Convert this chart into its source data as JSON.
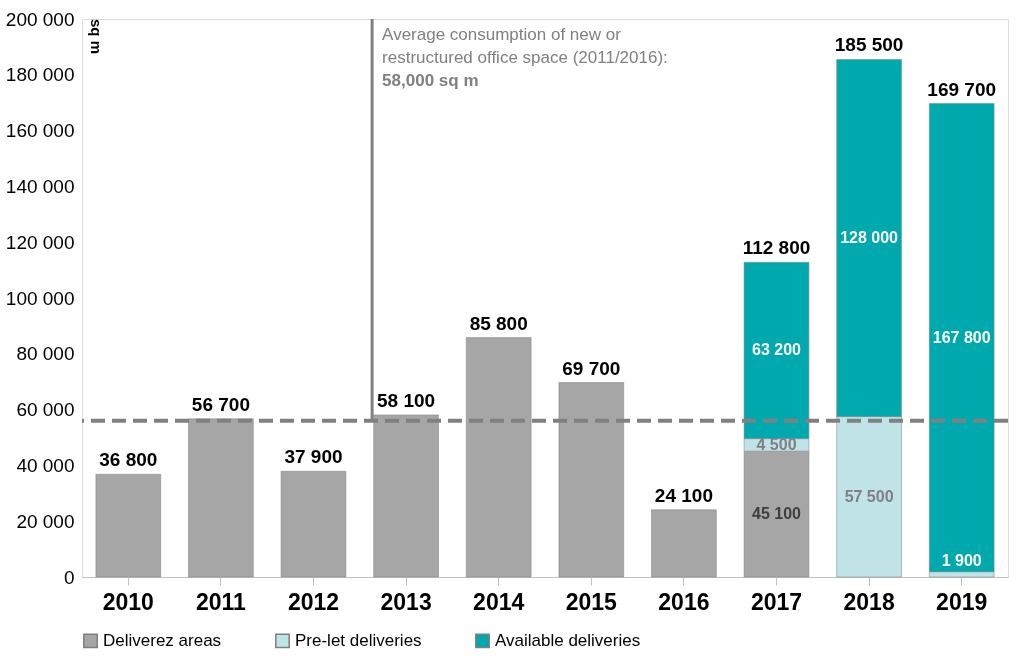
{
  "chart_data": {
    "type": "bar",
    "stacked": true,
    "ylabel": "sq m",
    "categories": [
      "2010",
      "2011",
      "2012",
      "2013",
      "2014",
      "2015",
      "2016",
      "2017",
      "2018",
      "2019"
    ],
    "series": [
      {
        "name": "Deliverez areas",
        "color": "#a6a6a6",
        "values": [
          36800,
          56700,
          37900,
          58100,
          85800,
          69700,
          24100,
          45100,
          null,
          null
        ],
        "value_labels": [
          null,
          null,
          null,
          null,
          null,
          null,
          null,
          "45 100",
          null,
          null
        ]
      },
      {
        "name": "Pre-let deliveries",
        "color": "#bfe3e6",
        "values": [
          null,
          null,
          null,
          null,
          null,
          null,
          null,
          4500,
          57500,
          1900
        ],
        "value_labels": [
          null,
          null,
          null,
          null,
          null,
          null,
          null,
          "4 500",
          "57 500",
          "1 900"
        ]
      },
      {
        "name": "Available deliveries",
        "color": "#00a9ad",
        "values": [
          null,
          null,
          null,
          null,
          null,
          null,
          null,
          63200,
          128000,
          167800
        ],
        "value_labels": [
          null,
          null,
          null,
          null,
          null,
          null,
          null,
          "63 200",
          "128 000",
          "167 800"
        ]
      }
    ],
    "totals": [
      "36 800",
      "56 700",
      "37 900",
      "58 100",
      "85 800",
      "69 700",
      "24 100",
      "112 800",
      "185 500",
      "169 700"
    ],
    "ylim": [
      0,
      200000
    ],
    "yticks": [
      0,
      {
        "value": 20000,
        "label": "20 000"
      },
      {
        "value": 40000,
        "label": "40 000"
      },
      {
        "value": 60000,
        "label": "60 000"
      },
      {
        "value": 80000,
        "label": "80 000"
      },
      {
        "value": 100000,
        "label": "100 000"
      },
      {
        "value": 120000,
        "label": "120 000"
      },
      {
        "value": 140000,
        "label": "140 000"
      },
      {
        "value": 160000,
        "label": "160 000"
      },
      {
        "value": 180000,
        "label": "180 000"
      },
      {
        "value": 200000,
        "label": "200 000"
      }
    ],
    "ref_lines": [
      {
        "axis": "y",
        "value": 56000,
        "label": null,
        "color": "#808080",
        "line_style": "dashed"
      }
    ],
    "annotations": [
      "Average consumption of new or restructured office space (2011/2016):",
      "58,000 sq m"
    ],
    "grid": false,
    "legend": "bottom"
  }
}
